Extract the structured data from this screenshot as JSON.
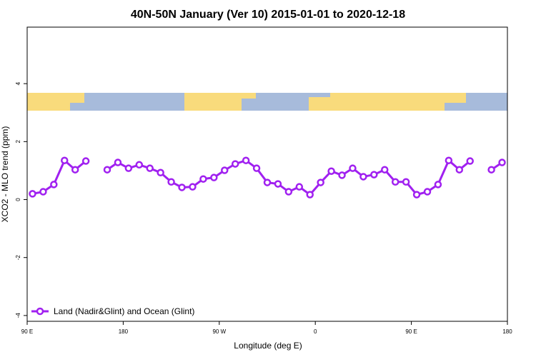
{
  "chart_data": {
    "type": "line",
    "title": "40N-50N January (Ver 10)   2015-01-01 to 2020-12-18",
    "x_label": "Longitude (deg E)",
    "y_label": "XCO2 - MLO trend (ppm)",
    "x": [
      95,
      105,
      115,
      125,
      135,
      145,
      155,
      165,
      175,
      185,
      195,
      205,
      215,
      225,
      235,
      245,
      255,
      265,
      275,
      285,
      295,
      305,
      315,
      325,
      335,
      345,
      355,
      365,
      375,
      385,
      395,
      405,
      415,
      425,
      435,
      445,
      455,
      465,
      475,
      485,
      495,
      505,
      515,
      525,
      535
    ],
    "series": [
      {
        "name": "Land (Nadir&Glint) and Ocean (Glint)",
        "color": "#a020f0",
        "values": [
          0.2,
          0.27,
          0.52,
          1.35,
          1.03,
          1.33,
          null,
          1.03,
          1.28,
          1.08,
          1.2,
          1.08,
          0.93,
          0.61,
          0.42,
          0.44,
          0.71,
          0.76,
          1.01,
          1.23,
          1.35,
          1.08,
          0.59,
          0.54,
          0.27,
          0.44,
          0.17,
          0.59,
          0.98,
          0.84,
          1.08,
          0.79,
          0.86,
          1.03,
          0.61,
          0.61,
          0.17,
          0.27,
          0.52,
          1.35,
          1.03,
          1.33,
          null,
          1.03,
          1.28
        ]
      }
    ],
    "xlim": [
      90,
      540
    ],
    "xticks": [
      {
        "value": 90,
        "label": "90 E"
      },
      {
        "value": 180,
        "label": "180"
      },
      {
        "value": 270,
        "label": "90 W"
      },
      {
        "value": 360,
        "label": "0"
      },
      {
        "value": 450,
        "label": "90 E"
      },
      {
        "value": 540,
        "label": "180"
      }
    ],
    "ylim": [
      -4.2,
      5.95
    ],
    "yticks": [
      -4,
      -2,
      0,
      2,
      4
    ],
    "legend": "bottom-left"
  }
}
